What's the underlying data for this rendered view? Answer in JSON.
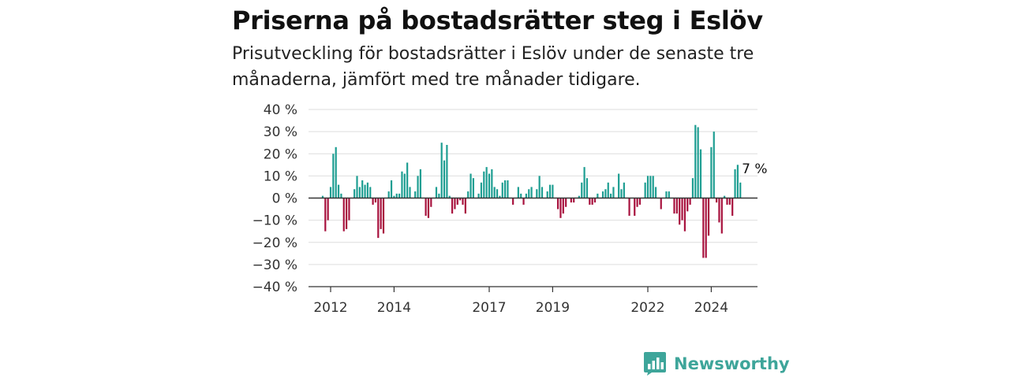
{
  "header": {
    "title": "Priserna på bostadsrätter steg i Eslöv",
    "subtitle": "Prisutveckling för bostadsrätter i Eslöv under de senaste tre månaderna, jämfört med tre månader tidigare."
  },
  "brand": {
    "name": "Newsworthy",
    "icon": "newsworthy-logo-icon",
    "color": "#3ea59a"
  },
  "colors": {
    "positive": "#1e9e92",
    "negative": "#a8123e",
    "grid": "#dedede",
    "zero_line": "#333333"
  },
  "chart_data": {
    "type": "bar",
    "ylim": [
      -40,
      40
    ],
    "yticks": [
      40,
      30,
      20,
      10,
      0,
      -10,
      -20,
      -30,
      -40
    ],
    "ytick_labels": [
      "40 %",
      "30 %",
      "20 %",
      "10 %",
      "0 %",
      "−10 %",
      "−20 %",
      "−30 %",
      "−40 %"
    ],
    "xticks": [
      2012,
      2014,
      2017,
      2019,
      2022,
      2024
    ],
    "x_start": 2011.75,
    "bars_per_year": 12,
    "values": [
      1,
      -15,
      -10,
      5,
      20,
      23,
      6,
      2,
      -15,
      -14,
      -10,
      0,
      4,
      10,
      5,
      8,
      6,
      7,
      5,
      -3,
      -2,
      -18,
      -14,
      -16,
      0,
      3,
      8,
      1,
      2,
      2,
      12,
      11,
      16,
      5,
      0,
      3,
      10,
      13,
      0,
      -8,
      -9,
      -4,
      0,
      5,
      2,
      25,
      17,
      24,
      1,
      -7,
      -5,
      -3,
      -1,
      -3,
      -7,
      3,
      11,
      9,
      0,
      2,
      7,
      12,
      14,
      11,
      13,
      5,
      4,
      1,
      7,
      8,
      8,
      0,
      -3,
      0,
      5,
      2,
      -3,
      2,
      4,
      5,
      0,
      4,
      10,
      5,
      0,
      3,
      6,
      6,
      0,
      -5,
      -9,
      -7,
      -4,
      0,
      -2,
      -2,
      0,
      1,
      7,
      14,
      9,
      -3,
      -3,
      -2,
      2,
      0,
      3,
      4,
      7,
      2,
      5,
      0,
      11,
      4,
      7,
      0,
      -8,
      0,
      -8,
      -4,
      -3,
      0,
      7,
      10,
      10,
      10,
      5,
      0,
      -5,
      0,
      3,
      3,
      0,
      -7,
      -7,
      -12,
      -10,
      -15,
      -6,
      -3,
      9,
      33,
      32,
      22,
      -27,
      -27,
      -17,
      23,
      30,
      -2,
      -11,
      -16,
      1,
      -3,
      -3,
      -8,
      13,
      15,
      7
    ],
    "annotation": {
      "text": "7 %",
      "x_index": 161
    }
  }
}
